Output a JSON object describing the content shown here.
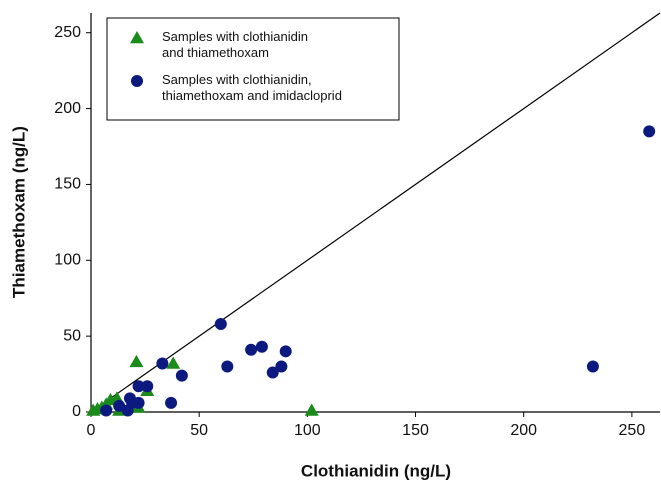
{
  "chart_data": {
    "type": "scatter",
    "x_label": "Clothianidin (ng/L)",
    "y_label": "Thiamethoxam (ng/L)",
    "xlim": [
      0,
      263
    ],
    "ylim": [
      0,
      263
    ],
    "xticks": [
      0,
      50,
      100,
      150,
      200,
      250
    ],
    "yticks": [
      0,
      50,
      100,
      150,
      200,
      250
    ],
    "identity_line": true,
    "legend": "upper left",
    "series": [
      {
        "name": "Samples with clothianidin\nand thiamethoxam",
        "color": "#1a8a1a",
        "marker": "triangle",
        "x": [
          1,
          3,
          5,
          7,
          9,
          12,
          13,
          15,
          21,
          22,
          26,
          38,
          102
        ],
        "values": [
          1,
          2,
          3,
          5,
          8,
          9,
          1,
          2,
          33,
          3,
          14,
          32,
          1
        ]
      },
      {
        "name": "Samples with clothianidin,\nthiamethoxam and imidacloprid",
        "color": "#0c1a80",
        "marker": "circle",
        "x": [
          7,
          13,
          17,
          18,
          19,
          22,
          22,
          26,
          33,
          37,
          42,
          60,
          63,
          74,
          79,
          84,
          88,
          90,
          232,
          258
        ],
        "values": [
          1,
          4,
          1,
          9,
          6,
          17,
          6,
          17,
          32,
          6,
          24,
          58,
          30,
          41,
          43,
          26,
          30,
          40,
          30,
          185
        ]
      }
    ]
  }
}
